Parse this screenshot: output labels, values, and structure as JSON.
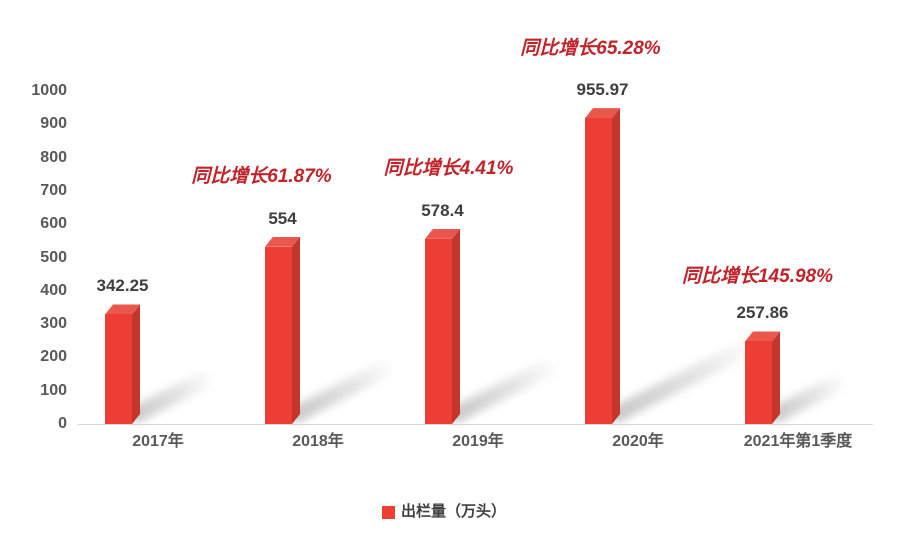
{
  "chart_data": {
    "type": "bar",
    "title": "",
    "xlabel": "",
    "ylabel": "",
    "categories": [
      "2017年",
      "2018年",
      "2019年",
      "2020年",
      "2021年第1季度"
    ],
    "series": [
      {
        "name": "出栏量（万头）",
        "values": [
          342.25,
          554,
          578.4,
          955.97,
          257.86
        ]
      }
    ],
    "value_labels": [
      "342.25",
      "554",
      "578.4",
      "955.97",
      "257.86"
    ],
    "annotations": [
      {
        "text": "同比增长61.87%",
        "category_index": 1
      },
      {
        "text": "同比增长4.41%",
        "category_index": 2
      },
      {
        "text": "同比增长65.28%",
        "category_index": 3
      },
      {
        "text": "同比增长145.98%",
        "category_index": 4
      }
    ],
    "y_axis": {
      "min": 0,
      "max": 1000,
      "step": 100,
      "ticks": [
        "0",
        "100",
        "200",
        "300",
        "400",
        "500",
        "600",
        "700",
        "800",
        "900",
        "1000"
      ]
    },
    "legend": {
      "label": "出栏量（万头）",
      "position": "bottom"
    },
    "grid": false,
    "style_3d": true,
    "colors": {
      "bar_front": "#ee3e33",
      "bar_top": "#e9574d",
      "bar_side": "#c4352b",
      "annotation": "#c2232b",
      "value_label": "#3f3f3f",
      "axis_text": "#595959",
      "baseline": "#d6d6d6",
      "background": "#ffffff"
    }
  }
}
